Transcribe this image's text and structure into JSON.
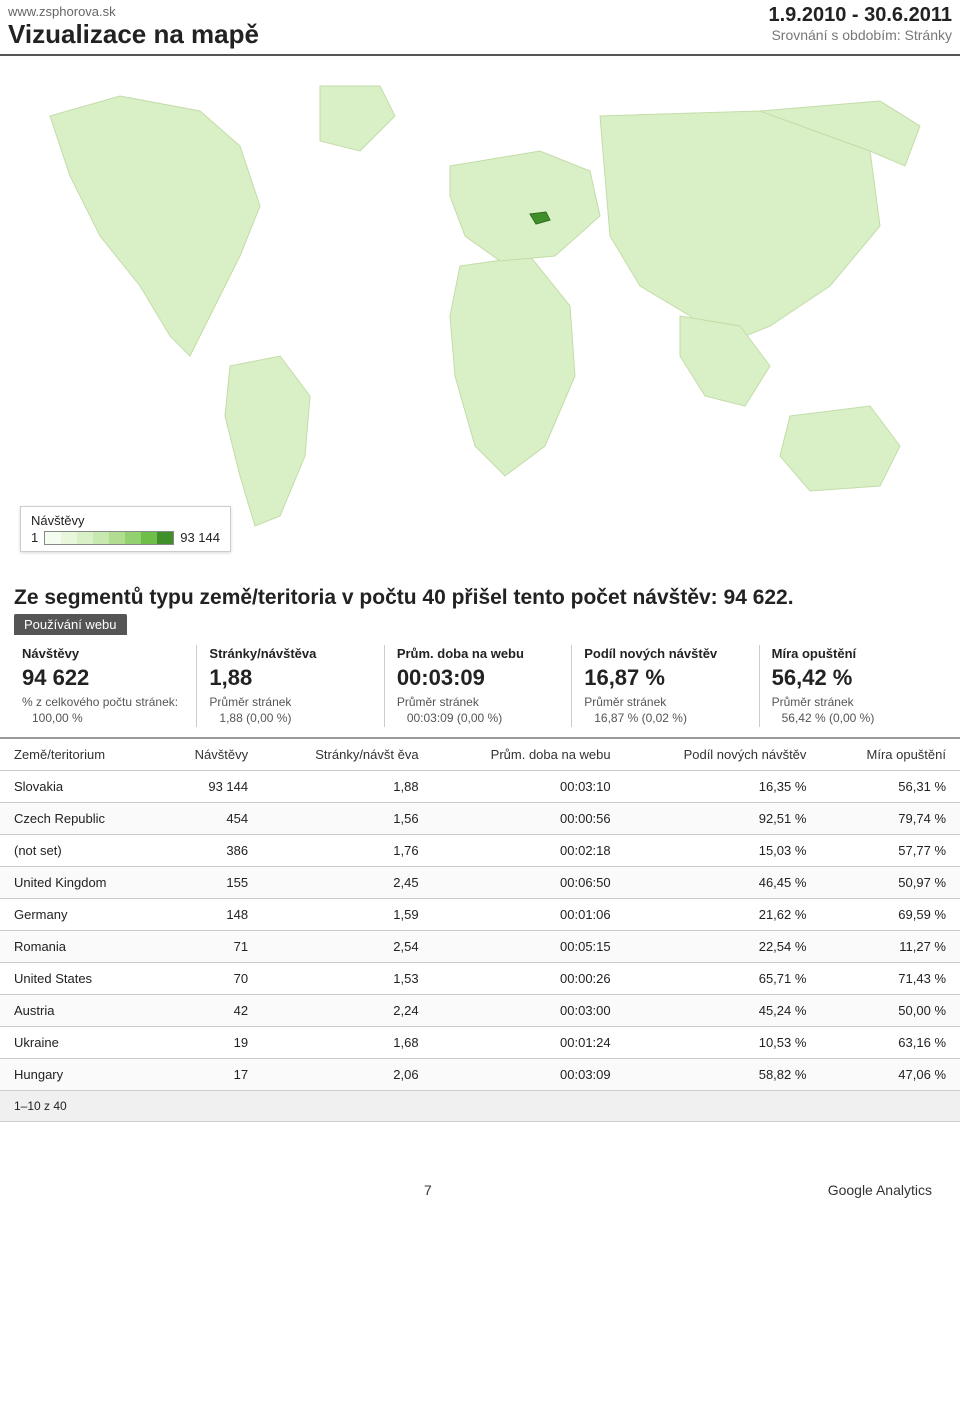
{
  "header": {
    "url": "www.zsphorova.sk",
    "title": "Vizualizace na mapě",
    "daterange": "1.9.2010 - 30.6.2011",
    "subtitle": "Srovnání s obdobím: Stránky"
  },
  "map": {
    "land_fill": "#d9f0c6",
    "land_stroke": "#c3dca8",
    "highlight_fill": "#3f8f2a",
    "background": "#ffffff",
    "legend_title": "Návštěvy",
    "legend_min": "1",
    "legend_max": "93 144",
    "legend_colors": [
      "#f4fbef",
      "#e8f6db",
      "#d9f0c6",
      "#c7e8ae",
      "#b1dd91",
      "#93d06f",
      "#6fbe4a",
      "#3f8f2a"
    ]
  },
  "segment_line": "Ze segmentů typu země/teritoria v počtu 40 přišel tento počet návštěv: 94 622.",
  "tab_label": "Používání webu",
  "metrics": [
    {
      "label": "Návštěvy",
      "value": "94 622",
      "avg_label": "% z celkového počtu stránek:",
      "avg_value": "100,00 %"
    },
    {
      "label": "Stránky/návštěva",
      "value": "1,88",
      "avg_label": "Průměr stránek",
      "avg_value": "1,88 (0,00 %)"
    },
    {
      "label": "Prům. doba na webu",
      "value": "00:03:09",
      "avg_label": "Průměr stránek",
      "avg_value": "00:03:09 (0,00 %)"
    },
    {
      "label": "Podíl nových návštěv",
      "value": "16,87 %",
      "avg_label": "Průměr stránek",
      "avg_value": "16,87 % (0,02 %)"
    },
    {
      "label": "Míra opuštění",
      "value": "56,42 %",
      "avg_label": "Průměr stránek",
      "avg_value": "56,42 % (0,00 %)"
    }
  ],
  "table": {
    "columns": [
      "Země/teritorium",
      "Návštěvy",
      "Stránky/návšt ěva",
      "Prům. doba na webu",
      "Podíl nových návštěv",
      "Míra opuštění"
    ],
    "rows": [
      [
        "Slovakia",
        "93 144",
        "1,88",
        "00:03:10",
        "16,35 %",
        "56,31 %"
      ],
      [
        "Czech Republic",
        "454",
        "1,56",
        "00:00:56",
        "92,51 %",
        "79,74 %"
      ],
      [
        "(not set)",
        "386",
        "1,76",
        "00:02:18",
        "15,03 %",
        "57,77 %"
      ],
      [
        "United Kingdom",
        "155",
        "2,45",
        "00:06:50",
        "46,45 %",
        "50,97 %"
      ],
      [
        "Germany",
        "148",
        "1,59",
        "00:01:06",
        "21,62 %",
        "69,59 %"
      ],
      [
        "Romania",
        "71",
        "2,54",
        "00:05:15",
        "22,54 %",
        "11,27 %"
      ],
      [
        "United States",
        "70",
        "1,53",
        "00:00:26",
        "65,71 %",
        "71,43 %"
      ],
      [
        "Austria",
        "42",
        "2,24",
        "00:03:00",
        "45,24 %",
        "50,00 %"
      ],
      [
        "Ukraine",
        "19",
        "1,68",
        "00:01:24",
        "10,53 %",
        "63,16 %"
      ],
      [
        "Hungary",
        "17",
        "2,06",
        "00:03:09",
        "58,82 %",
        "47,06 %"
      ]
    ],
    "pager": "1–10 z 40"
  },
  "footer": {
    "page": "7",
    "brand": "Google Analytics"
  }
}
